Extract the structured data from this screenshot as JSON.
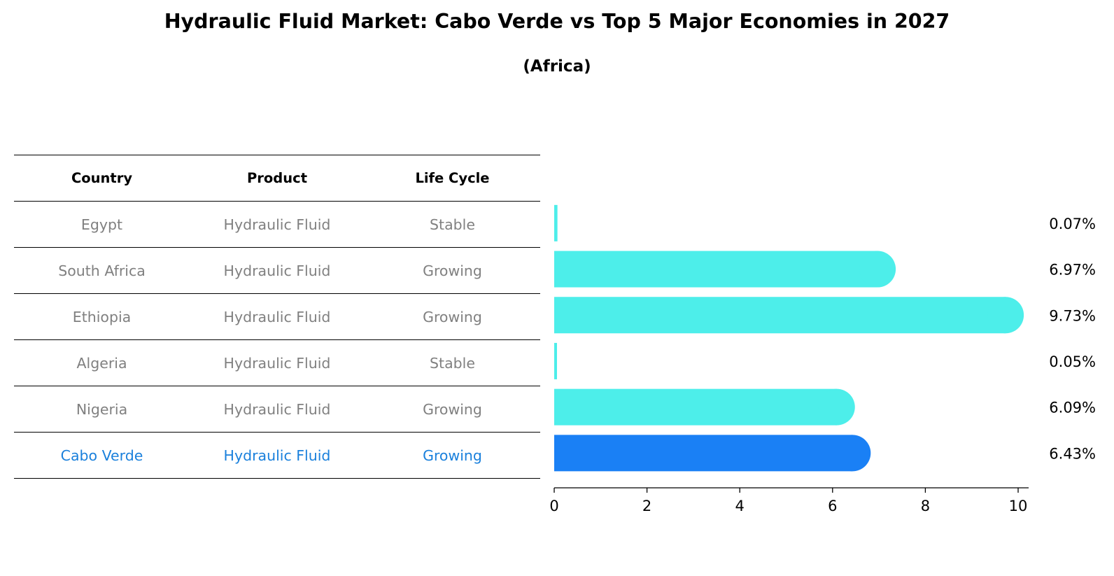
{
  "title": "Hydraulic Fluid Market: Cabo Verde vs Top 5 Major Economies in 2027",
  "subtitle": "(Africa)",
  "table": {
    "headers": [
      "Country",
      "Product",
      "Life Cycle"
    ],
    "rows": [
      {
        "country": "Egypt",
        "product": "Hydraulic Fluid",
        "life_cycle": "Stable"
      },
      {
        "country": "South Africa",
        "product": "Hydraulic Fluid",
        "life_cycle": "Growing"
      },
      {
        "country": "Ethiopia",
        "product": "Hydraulic Fluid",
        "life_cycle": "Growing"
      },
      {
        "country": "Algeria",
        "product": "Hydraulic Fluid",
        "life_cycle": "Stable"
      },
      {
        "country": "Nigeria",
        "product": "Hydraulic Fluid",
        "life_cycle": "Growing"
      },
      {
        "country": "Cabo Verde",
        "product": "Hydraulic Fluid",
        "life_cycle": "Growing"
      }
    ]
  },
  "chart_data": {
    "type": "bar",
    "orientation": "horizontal",
    "categories": [
      "Egypt",
      "South Africa",
      "Ethiopia",
      "Algeria",
      "Nigeria",
      "Cabo Verde"
    ],
    "values": [
      0.07,
      6.97,
      9.73,
      0.05,
      6.09,
      6.43
    ],
    "value_labels": [
      "0.07%",
      "6.97%",
      "9.73%",
      "0.05%",
      "6.09%",
      "6.43%"
    ],
    "highlight_index": 5,
    "xlim": [
      0,
      10
    ],
    "xticks": [
      0,
      2,
      4,
      6,
      8,
      10
    ],
    "colors": {
      "default": "#4deeea",
      "highlight": "#1a80f5"
    }
  }
}
